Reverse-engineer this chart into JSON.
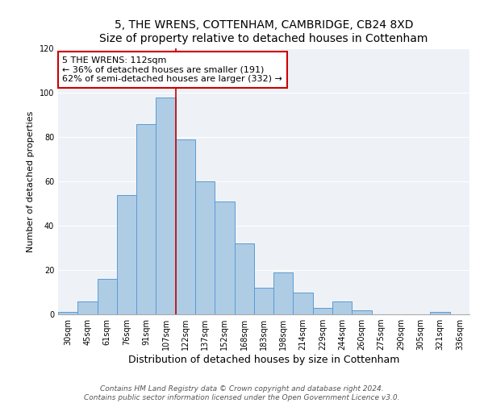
{
  "title": "5, THE WRENS, COTTENHAM, CAMBRIDGE, CB24 8XD",
  "subtitle": "Size of property relative to detached houses in Cottenham",
  "xlabel": "Distribution of detached houses by size in Cottenham",
  "ylabel": "Number of detached properties",
  "bar_labels": [
    "30sqm",
    "45sqm",
    "61sqm",
    "76sqm",
    "91sqm",
    "107sqm",
    "122sqm",
    "137sqm",
    "152sqm",
    "168sqm",
    "183sqm",
    "198sqm",
    "214sqm",
    "229sqm",
    "244sqm",
    "260sqm",
    "275sqm",
    "290sqm",
    "305sqm",
    "321sqm",
    "336sqm"
  ],
  "bar_values": [
    1,
    6,
    16,
    54,
    86,
    98,
    79,
    60,
    51,
    32,
    12,
    19,
    10,
    3,
    6,
    2,
    0,
    0,
    0,
    1,
    0
  ],
  "bar_color": "#aecce4",
  "bar_edge_color": "#5b9bd5",
  "highlight_index": 5,
  "highlight_line_color": "#cc0000",
  "annotation_text": "5 THE WRENS: 112sqm\n← 36% of detached houses are smaller (191)\n62% of semi-detached houses are larger (332) →",
  "annotation_box_edge_color": "#cc0000",
  "ylim": [
    0,
    120
  ],
  "yticks": [
    0,
    20,
    40,
    60,
    80,
    100,
    120
  ],
  "footer_line1": "Contains HM Land Registry data © Crown copyright and database right 2024.",
  "footer_line2": "Contains public sector information licensed under the Open Government Licence v3.0.",
  "title_fontsize": 10,
  "subtitle_fontsize": 9,
  "xlabel_fontsize": 9,
  "ylabel_fontsize": 8,
  "tick_fontsize": 7,
  "annotation_fontsize": 8,
  "footer_fontsize": 6.5,
  "background_color": "#eef2f7"
}
